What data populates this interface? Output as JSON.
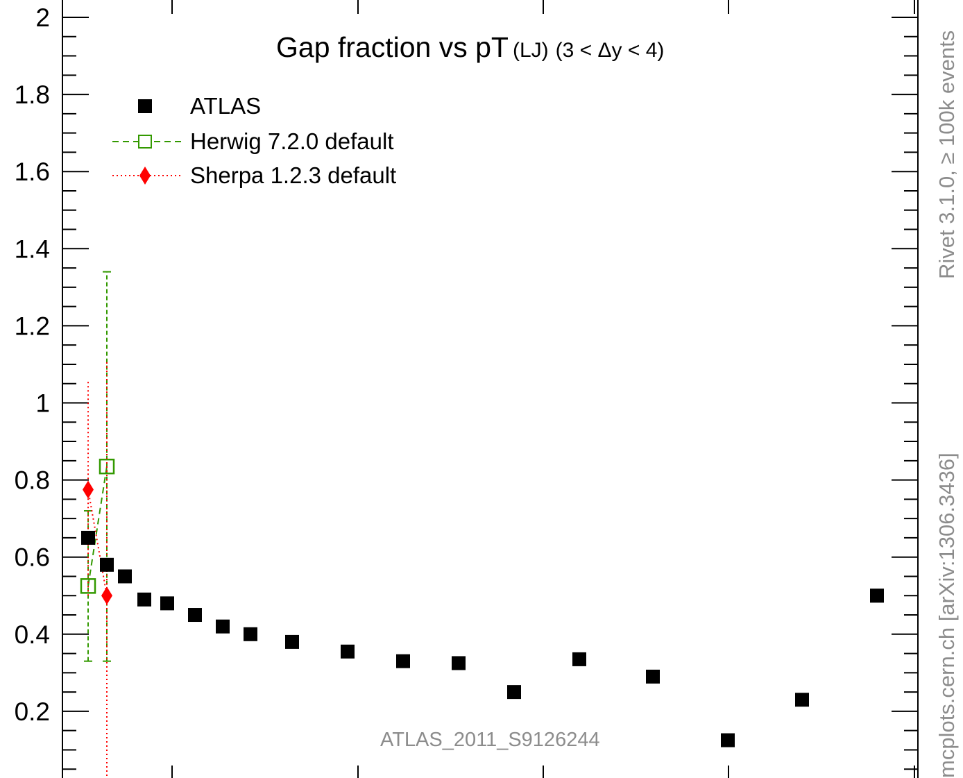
{
  "chart_data": {
    "type": "scatter",
    "title": "Gap fraction vs pT",
    "title_parts": {
      "main": "Gap fraction vs pT",
      "sub": "(LJ)",
      "range": "(3 < Δy < 4)"
    },
    "xlabel": "",
    "ylabel": "",
    "ylim": [
      0.0,
      2.02
    ],
    "y_ticks": [
      "0.2",
      "0.4",
      "0.6",
      "0.8",
      "1",
      "1.2",
      "1.4",
      "1.6",
      "1.8",
      "2"
    ],
    "grid": false,
    "legend_position": "top-left",
    "analysis_label": "ATLAS_2011_S9126244",
    "side_labels": {
      "rivet": "Rivet 3.1.0, ≥ 100k events",
      "mcplots": "mcplots.cern.ch [arXiv:1306.3436]"
    },
    "series": [
      {
        "name": "ATLAS",
        "color": "#000000",
        "marker": "square",
        "x": [
          1,
          2,
          3,
          4,
          5,
          6,
          7,
          8,
          9,
          10,
          11,
          12,
          13,
          14,
          15,
          16,
          17,
          18,
          19
        ],
        "y": [
          0.65,
          0.58,
          0.55,
          0.49,
          0.48,
          0.45,
          0.42,
          0.4,
          0.38,
          0.355,
          0.33,
          0.325,
          0.25,
          0.335,
          0.29,
          0.125,
          0.23,
          0.5,
          0.5
        ]
      },
      {
        "name": "Herwig 7.2.0 default",
        "color": "#339900",
        "marker": "open-square",
        "line": "dashed",
        "x": [
          1,
          2
        ],
        "y": [
          0.525,
          0.835
        ],
        "yerr_low": [
          0.33,
          0.33
        ],
        "yerr_high": [
          0.72,
          1.34
        ]
      },
      {
        "name": "Sherpa 1.2.3 default",
        "color": "#ff0000",
        "marker": "diamond",
        "line": "dotted",
        "x": [
          1,
          2
        ],
        "y": [
          0.775,
          0.5
        ],
        "yerr_low": [
          0.5,
          0.0
        ],
        "yerr_high": [
          1.06,
          1.11
        ]
      }
    ]
  }
}
